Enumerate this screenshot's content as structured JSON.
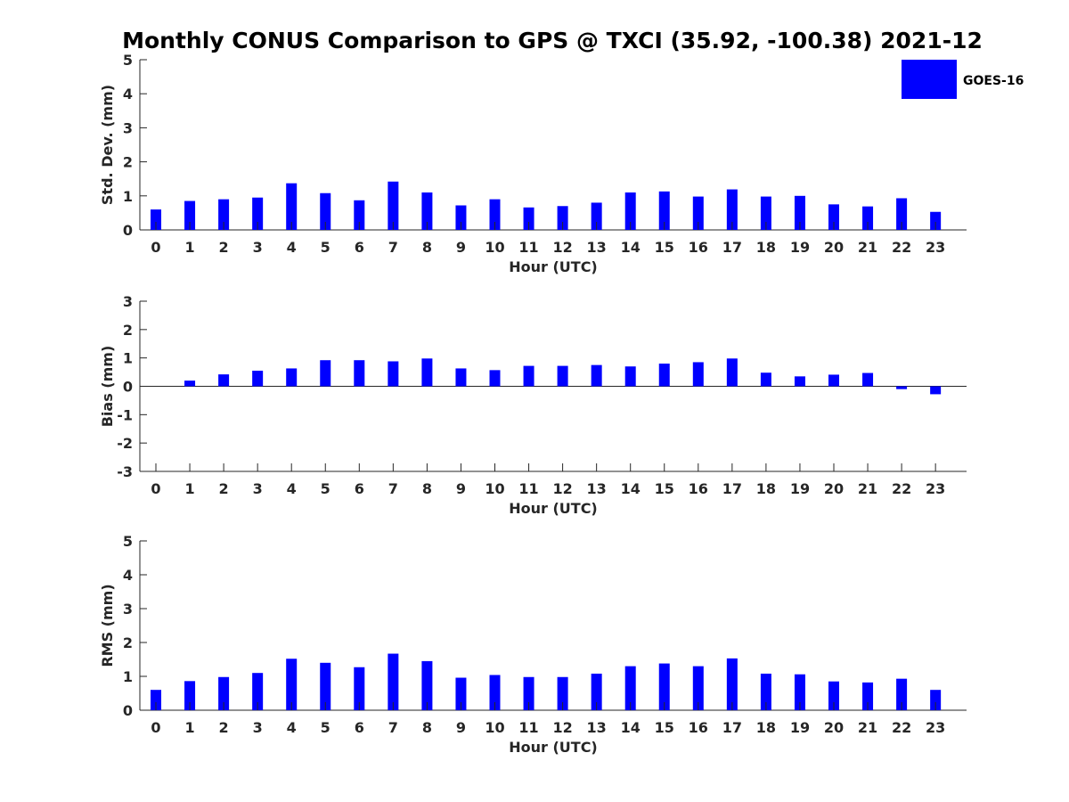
{
  "figure_title": "Monthly CONUS Comparison to GPS @ TXCI (35.92, -100.38) 2021-12",
  "legend": {
    "label": "GOES-16",
    "color": "#0000ff",
    "placement": "top-right"
  },
  "chart_data": [
    {
      "type": "bar",
      "ylabel": "Std. Dev. (mm)",
      "xlabel": "Hour (UTC)",
      "ylim": [
        0,
        5
      ],
      "yticks": [
        0,
        1,
        2,
        3,
        4,
        5
      ],
      "categories": [
        "0",
        "1",
        "2",
        "3",
        "4",
        "5",
        "6",
        "7",
        "8",
        "9",
        "10",
        "11",
        "12",
        "13",
        "14",
        "15",
        "16",
        "17",
        "18",
        "19",
        "20",
        "21",
        "22",
        "23"
      ],
      "series": [
        {
          "name": "GOES-16",
          "color": "#0000ff",
          "values": [
            0.6,
            0.85,
            0.9,
            0.95,
            1.37,
            1.08,
            0.87,
            1.42,
            1.1,
            0.72,
            0.9,
            0.66,
            0.7,
            0.8,
            1.1,
            1.13,
            0.98,
            1.19,
            0.98,
            1.0,
            0.75,
            0.69,
            0.93,
            0.53
          ]
        }
      ]
    },
    {
      "type": "bar",
      "ylabel": "Bias (mm)",
      "xlabel": "Hour (UTC)",
      "ylim": [
        -3,
        3
      ],
      "yticks": [
        -3,
        -2,
        -1,
        0,
        1,
        2,
        3
      ],
      "categories": [
        "0",
        "1",
        "2",
        "3",
        "4",
        "5",
        "6",
        "7",
        "8",
        "9",
        "10",
        "11",
        "12",
        "13",
        "14",
        "15",
        "16",
        "17",
        "18",
        "19",
        "20",
        "21",
        "22",
        "23"
      ],
      "series": [
        {
          "name": "GOES-16",
          "color": "#0000ff",
          "values": [
            0.0,
            0.2,
            0.42,
            0.55,
            0.63,
            0.92,
            0.92,
            0.88,
            0.98,
            0.63,
            0.57,
            0.72,
            0.72,
            0.75,
            0.7,
            0.8,
            0.85,
            0.98,
            0.48,
            0.35,
            0.41,
            0.47,
            -0.1,
            -0.28
          ]
        }
      ]
    },
    {
      "type": "bar",
      "ylabel": "RMS (mm)",
      "xlabel": "Hour (UTC)",
      "ylim": [
        0,
        5
      ],
      "yticks": [
        0,
        1,
        2,
        3,
        4,
        5
      ],
      "categories": [
        "0",
        "1",
        "2",
        "3",
        "4",
        "5",
        "6",
        "7",
        "8",
        "9",
        "10",
        "11",
        "12",
        "13",
        "14",
        "15",
        "16",
        "17",
        "18",
        "19",
        "20",
        "21",
        "22",
        "23"
      ],
      "series": [
        {
          "name": "GOES-16",
          "color": "#0000ff",
          "values": [
            0.6,
            0.86,
            0.98,
            1.1,
            1.52,
            1.4,
            1.27,
            1.67,
            1.45,
            0.96,
            1.04,
            0.98,
            0.98,
            1.08,
            1.3,
            1.38,
            1.3,
            1.53,
            1.08,
            1.06,
            0.85,
            0.82,
            0.93,
            0.6
          ]
        }
      ]
    }
  ]
}
